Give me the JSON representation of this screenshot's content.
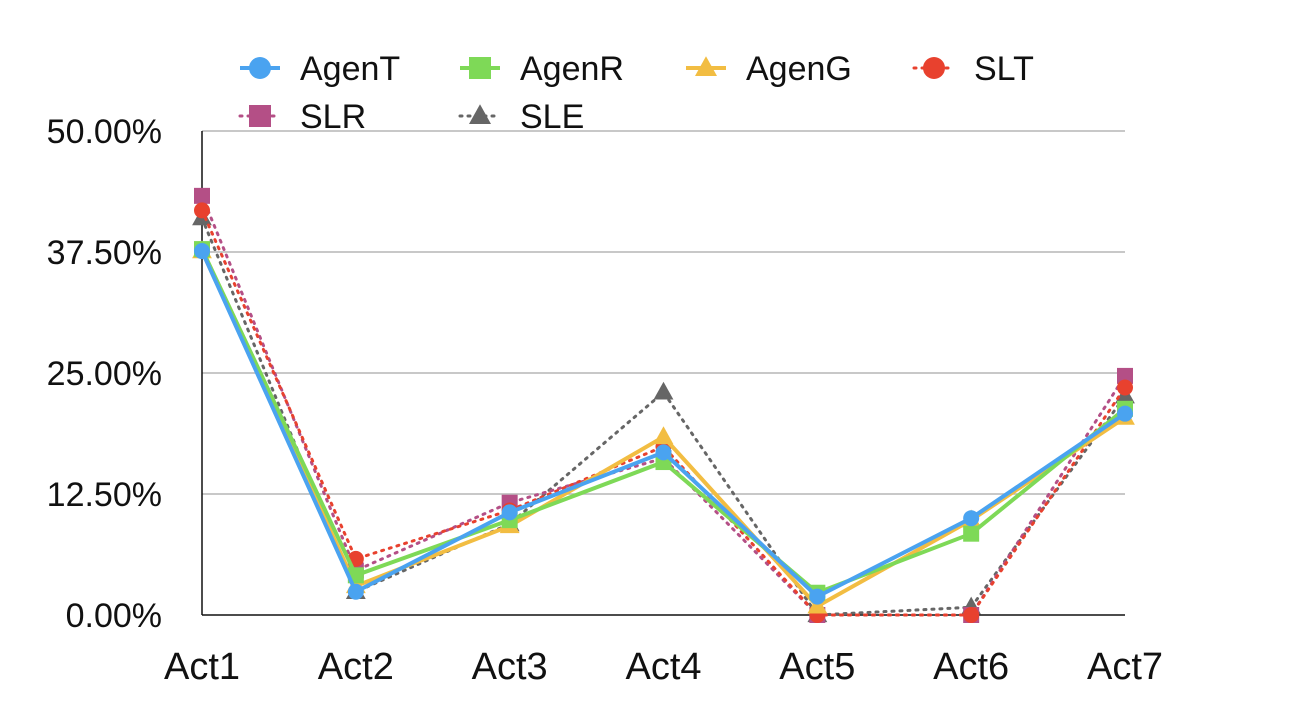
{
  "chart_data": {
    "type": "line",
    "categories": [
      "Act1",
      "Act2",
      "Act3",
      "Act4",
      "Act5",
      "Act6",
      "Act7"
    ],
    "ylim": [
      0,
      50
    ],
    "yticks": [
      "0.00%",
      "12.50%",
      "25.00%",
      "37.50%",
      "50.00%"
    ],
    "grid": true,
    "legend_position": "top",
    "series": [
      {
        "name": "AgenT",
        "color": "#4aa3f0",
        "marker": "circle",
        "dash": "solid",
        "values": [
          37.6,
          2.4,
          10.6,
          16.8,
          1.9,
          10.0,
          20.8
        ]
      },
      {
        "name": "AgenR",
        "color": "#7ed957",
        "marker": "square",
        "dash": "solid",
        "values": [
          37.8,
          4.1,
          9.8,
          15.8,
          2.3,
          8.4,
          21.3
        ]
      },
      {
        "name": "AgenG",
        "color": "#f2bd42",
        "marker": "triangle",
        "dash": "solid",
        "values": [
          37.6,
          3.0,
          9.2,
          18.4,
          0.9,
          9.8,
          20.4
        ]
      },
      {
        "name": "SLT",
        "color": "#e8412e",
        "marker": "circle",
        "dash": "dotted",
        "values": [
          41.8,
          5.8,
          10.8,
          17.4,
          0.0,
          0.0,
          23.5
        ]
      },
      {
        "name": "SLR",
        "color": "#b44f86",
        "marker": "square",
        "dash": "dotted",
        "values": [
          43.3,
          4.6,
          11.6,
          16.2,
          0.0,
          0.0,
          24.7
        ]
      },
      {
        "name": "SLE",
        "color": "#666666",
        "marker": "triangle",
        "dash": "dotted",
        "values": [
          41.0,
          2.4,
          9.4,
          23.0,
          0.0,
          0.8,
          22.6
        ]
      }
    ]
  }
}
